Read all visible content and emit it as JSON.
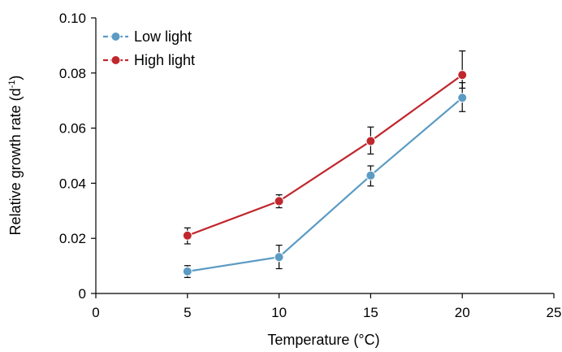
{
  "chart_data": {
    "type": "line",
    "title": "",
    "xlabel": "Temperature (°C)",
    "ylabel": "Relative growth rate (d",
    "ylabel_sup": "-1",
    "ylabel_tail": ")",
    "xlim": [
      0,
      25
    ],
    "ylim": [
      0,
      0.1
    ],
    "x_ticks": [
      0,
      5,
      10,
      15,
      20,
      25
    ],
    "x_tick_labels": [
      "0",
      "5",
      "10",
      "15",
      "20",
      "25"
    ],
    "y_ticks": [
      0,
      0.02,
      0.04,
      0.06,
      0.08,
      0.1
    ],
    "y_tick_labels": [
      "0",
      "0.02",
      "0.04",
      "0.06",
      "0.08",
      "0.10"
    ],
    "grid": false,
    "legend_position": "top-left",
    "x": [
      5,
      10,
      15,
      20
    ],
    "series": [
      {
        "name": "Low light",
        "color": "#5b9bc4",
        "values": [
          0.008,
          0.0132,
          0.0428,
          0.071
        ],
        "error_upper": [
          0.0101,
          0.0175,
          0.0463,
          0.0765
        ],
        "error_lower": [
          0.0058,
          0.009,
          0.039,
          0.066
        ]
      },
      {
        "name": "High light",
        "color": "#c0272d",
        "values": [
          0.021,
          0.0335,
          0.0553,
          0.0793
        ],
        "error_upper": [
          0.0238,
          0.0358,
          0.0604,
          0.088
        ],
        "error_lower": [
          0.018,
          0.0311,
          0.0506,
          0.0745
        ]
      }
    ]
  }
}
